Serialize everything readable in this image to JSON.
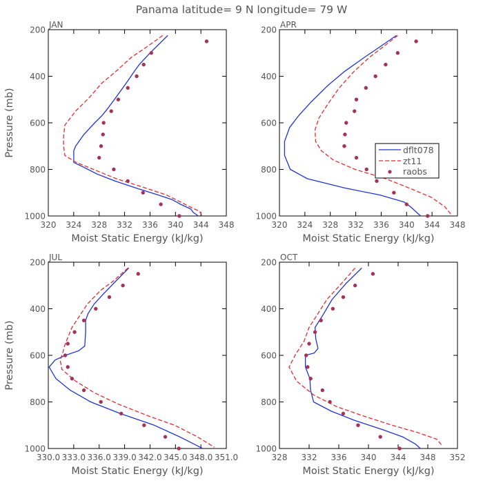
{
  "figure_title": "Panama  latitude= 9 N longitude= 79 W",
  "colors": {
    "model": "#1e33d8",
    "zt": "#e22b2b",
    "obs": "#a33456",
    "text": "#555555"
  },
  "legend_labels": [
    "dflt078",
    "zt11",
    "raobs"
  ],
  "chart_data": [
    {
      "type": "line",
      "panel": "JAN",
      "xlabel": "Moist Static Energy (kJ/kg)",
      "ylabel": "Pressure (mb)",
      "xlim": [
        320,
        348
      ],
      "ylim": [
        1000,
        200
      ],
      "xticks": [
        320,
        324,
        328,
        332,
        336,
        340,
        344,
        348
      ],
      "xtick_labels": [
        "320",
        "324",
        "328",
        "332",
        "336",
        "340",
        "344",
        "348"
      ],
      "yticks": [
        200,
        400,
        600,
        800,
        1000
      ],
      "ytick_labels": [
        "200",
        "400",
        "600",
        "800",
        "1000"
      ],
      "show_legend": false,
      "series": [
        {
          "name": "dflt078",
          "style": "solid",
          "points": [
            [
              338.8,
              225
            ],
            [
              336,
              300
            ],
            [
              334.3,
              350
            ],
            [
              333.5,
              380
            ],
            [
              332.5,
              420
            ],
            [
              330.4,
              500
            ],
            [
              329.3,
              540
            ],
            [
              328.4,
              570
            ],
            [
              327.3,
              600
            ],
            [
              325.6,
              650
            ],
            [
              324.3,
              700
            ],
            [
              324,
              720
            ],
            [
              324,
              770
            ],
            [
              325.5,
              790
            ],
            [
              327.7,
              820
            ],
            [
              330.5,
              850
            ],
            [
              333.8,
              880
            ],
            [
              337.3,
              910
            ],
            [
              339.5,
              930
            ],
            [
              340.8,
              950
            ],
            [
              342.4,
              970
            ],
            [
              342.8,
              985
            ],
            [
              343.6,
              1000
            ]
          ]
        },
        {
          "name": "zt11",
          "style": "dashed",
          "points": [
            [
              338,
              225
            ],
            [
              335.7,
              270
            ],
            [
              333,
              320
            ],
            [
              330.6,
              380
            ],
            [
              328.4,
              430
            ],
            [
              326.5,
              490
            ],
            [
              324.3,
              550
            ],
            [
              322.6,
              610
            ],
            [
              322.4,
              660
            ],
            [
              322.4,
              700
            ],
            [
              322.6,
              740
            ],
            [
              324.4,
              770
            ],
            [
              327.1,
              800
            ],
            [
              330.7,
              840
            ],
            [
              335.3,
              880
            ],
            [
              338.6,
              910
            ],
            [
              340.8,
              940
            ],
            [
              342.2,
              960
            ],
            [
              343.8,
              980
            ],
            [
              344.2,
              1000
            ]
          ]
        },
        {
          "name": "raobs",
          "style": "markers",
          "points": [
            [
              344.9,
              250
            ],
            [
              336.2,
              300
            ],
            [
              335,
              350
            ],
            [
              333.9,
              400
            ],
            [
              332.5,
              450
            ],
            [
              331,
              500
            ],
            [
              329.9,
              550
            ],
            [
              328.7,
              600
            ],
            [
              328.6,
              650
            ],
            [
              328.3,
              700
            ],
            [
              328,
              750
            ],
            [
              330.3,
              800
            ],
            [
              332.5,
              850
            ],
            [
              334.9,
              900
            ],
            [
              337.7,
              950
            ],
            [
              340.6,
              1000
            ]
          ]
        }
      ]
    },
    {
      "type": "line",
      "panel": "APR",
      "xlabel": "Moist Static Energy (kJ/kg)",
      "ylabel": "",
      "xlim": [
        320,
        348
      ],
      "ylim": [
        1000,
        200
      ],
      "xticks": [
        320,
        324,
        328,
        332,
        336,
        340,
        344,
        348
      ],
      "xtick_labels": [
        "320",
        "324",
        "328",
        "332",
        "336",
        "340",
        "344",
        "348"
      ],
      "yticks": [
        200,
        400,
        600,
        800,
        1000
      ],
      "ytick_labels": [
        "200",
        "400",
        "600",
        "800",
        "1000"
      ],
      "show_legend": true,
      "series": [
        {
          "name": "dflt078",
          "style": "solid",
          "points": [
            [
              338.4,
              225
            ],
            [
              336,
              270
            ],
            [
              333.3,
              320
            ],
            [
              330.2,
              380
            ],
            [
              327.6,
              440
            ],
            [
              325,
              510
            ],
            [
              323,
              570
            ],
            [
              321.6,
              620
            ],
            [
              320.8,
              680
            ],
            [
              320.8,
              740
            ],
            [
              321.7,
              800
            ],
            [
              324.4,
              840
            ],
            [
              330.3,
              880
            ],
            [
              335.8,
              910
            ],
            [
              339.6,
              940
            ],
            [
              340.6,
              960
            ],
            [
              341.6,
              985
            ],
            [
              342.2,
              1000
            ]
          ]
        },
        {
          "name": "zt11",
          "style": "dashed",
          "points": [
            [
              338.6,
              225
            ],
            [
              336.5,
              270
            ],
            [
              334.1,
              320
            ],
            [
              331.7,
              380
            ],
            [
              329.4,
              450
            ],
            [
              327.6,
              520
            ],
            [
              326.2,
              580
            ],
            [
              325.6,
              630
            ],
            [
              325.7,
              680
            ],
            [
              326.6,
              720
            ],
            [
              328.5,
              760
            ],
            [
              331.9,
              800
            ],
            [
              336.7,
              840
            ],
            [
              340.4,
              880
            ],
            [
              343.9,
              920
            ],
            [
              346,
              960
            ],
            [
              347.2,
              1000
            ]
          ]
        },
        {
          "name": "raobs",
          "style": "markers",
          "points": [
            [
              341.5,
              250
            ],
            [
              338.6,
              300
            ],
            [
              336.7,
              350
            ],
            [
              335.1,
              400
            ],
            [
              333.6,
              450
            ],
            [
              332.1,
              500
            ],
            [
              331.8,
              550
            ],
            [
              330.5,
              600
            ],
            [
              330.3,
              650
            ],
            [
              330.2,
              700
            ],
            [
              332.1,
              750
            ],
            [
              333.7,
              800
            ],
            [
              335.3,
              850
            ],
            [
              338,
              900
            ],
            [
              340,
              950
            ],
            [
              343.3,
              1000
            ]
          ]
        }
      ]
    },
    {
      "type": "line",
      "panel": "JUL",
      "xlabel": "Moist Static Energy (kJ/kg)",
      "ylabel": "Pressure (mb)",
      "xlim": [
        330.0,
        351.0
      ],
      "ylim": [
        1000,
        200
      ],
      "xticks": [
        330.0,
        333.0,
        336.0,
        339.0,
        342.0,
        345.0,
        348.0,
        351.0
      ],
      "xtick_labels": [
        "330.0",
        "333.0",
        "336.0",
        "339.0",
        "342.0",
        "345.0",
        "348.0",
        "351.0"
      ],
      "yticks": [
        200,
        400,
        600,
        800,
        1000
      ],
      "ytick_labels": [
        "200",
        "400",
        "600",
        "800",
        "1000"
      ],
      "show_legend": false,
      "series": [
        {
          "name": "dflt078",
          "style": "solid",
          "points": [
            [
              339.5,
              225
            ],
            [
              338,
              280
            ],
            [
              336.4,
              340
            ],
            [
              335.4,
              380
            ],
            [
              334.7,
              420
            ],
            [
              334.4,
              450
            ],
            [
              334.4,
              500
            ],
            [
              334.3,
              560
            ],
            [
              333.6,
              580
            ],
            [
              332,
              600
            ],
            [
              330.8,
              620
            ],
            [
              330.1,
              650
            ],
            [
              330.9,
              700
            ],
            [
              332.6,
              750
            ],
            [
              335,
              800
            ],
            [
              338.5,
              850
            ],
            [
              342.5,
              900
            ],
            [
              345.5,
              950
            ],
            [
              347.4,
              985
            ],
            [
              348.2,
              1000
            ]
          ]
        },
        {
          "name": "zt11",
          "style": "dashed",
          "points": [
            [
              339.4,
              225
            ],
            [
              337.7,
              280
            ],
            [
              336.2,
              320
            ],
            [
              334.6,
              380
            ],
            [
              333.7,
              430
            ],
            [
              332.8,
              480
            ],
            [
              332,
              550
            ],
            [
              331.7,
              590
            ],
            [
              331.4,
              620
            ],
            [
              331.6,
              660
            ],
            [
              333.2,
              710
            ],
            [
              335.4,
              760
            ],
            [
              338.3,
              810
            ],
            [
              341.8,
              860
            ],
            [
              344.9,
              900
            ],
            [
              347.6,
              950
            ],
            [
              349.6,
              995
            ]
          ]
        },
        {
          "name": "raobs",
          "style": "markers",
          "points": [
            [
              340.6,
              250
            ],
            [
              338.8,
              300
            ],
            [
              337.2,
              350
            ],
            [
              335.6,
              400
            ],
            [
              334.2,
              450
            ],
            [
              333.1,
              500
            ],
            [
              332.3,
              550
            ],
            [
              332,
              600
            ],
            [
              332.3,
              650
            ],
            [
              332.8,
              700
            ],
            [
              334.2,
              750
            ],
            [
              336.2,
              800
            ],
            [
              338.6,
              850
            ],
            [
              341.3,
              900
            ],
            [
              343.8,
              950
            ],
            [
              345.4,
              1000
            ]
          ]
        }
      ]
    },
    {
      "type": "line",
      "panel": "OCT",
      "xlabel": "Moist Static Energy (kJ/kg)",
      "ylabel": "",
      "xlim": [
        328,
        352
      ],
      "ylim": [
        1000,
        200
      ],
      "xticks": [
        328,
        332,
        336,
        340,
        344,
        348,
        352
      ],
      "xtick_labels": [
        "328",
        "332",
        "336",
        "340",
        "344",
        "348",
        "352"
      ],
      "yticks": [
        200,
        400,
        600,
        800,
        1000
      ],
      "ytick_labels": [
        "200",
        "400",
        "600",
        "800",
        "1000"
      ],
      "show_legend": false,
      "series": [
        {
          "name": "dflt078",
          "style": "solid",
          "points": [
            [
              339.1,
              225
            ],
            [
              337,
              290
            ],
            [
              335.1,
              360
            ],
            [
              333.8,
              430
            ],
            [
              332.8,
              480
            ],
            [
              332.9,
              530
            ],
            [
              333.2,
              570
            ],
            [
              332.7,
              590
            ],
            [
              331.5,
              600
            ],
            [
              331.5,
              650
            ],
            [
              332.1,
              700
            ],
            [
              332.2,
              750
            ],
            [
              332.6,
              800
            ],
            [
              335,
              840
            ],
            [
              338.2,
              880
            ],
            [
              342,
              920
            ],
            [
              344.6,
              950
            ],
            [
              346.3,
              980
            ],
            [
              347,
              1000
            ]
          ]
        },
        {
          "name": "zt11",
          "style": "dashed",
          "points": [
            [
              338.2,
              225
            ],
            [
              336.4,
              290
            ],
            [
              334.4,
              360
            ],
            [
              333,
              430
            ],
            [
              332,
              480
            ],
            [
              331.3,
              540
            ],
            [
              330.1,
              600
            ],
            [
              329.3,
              650
            ],
            [
              330.3,
              710
            ],
            [
              332.6,
              770
            ],
            [
              335.7,
              820
            ],
            [
              339.3,
              860
            ],
            [
              343.2,
              900
            ],
            [
              346.5,
              930
            ],
            [
              349.2,
              960
            ],
            [
              350,
              990
            ]
          ]
        },
        {
          "name": "raobs",
          "style": "markers",
          "points": [
            [
              340.6,
              250
            ],
            [
              338.2,
              300
            ],
            [
              336.6,
              350
            ],
            [
              335.2,
              400
            ],
            [
              333.6,
              450
            ],
            [
              332.8,
              500
            ],
            [
              332,
              550
            ],
            [
              331.6,
              600
            ],
            [
              331.8,
              650
            ],
            [
              332.2,
              700
            ],
            [
              333.8,
              750
            ],
            [
              334.8,
              800
            ],
            [
              336.6,
              850
            ],
            [
              338.6,
              900
            ],
            [
              341.6,
              950
            ],
            [
              344.2,
              1000
            ]
          ]
        }
      ]
    }
  ]
}
